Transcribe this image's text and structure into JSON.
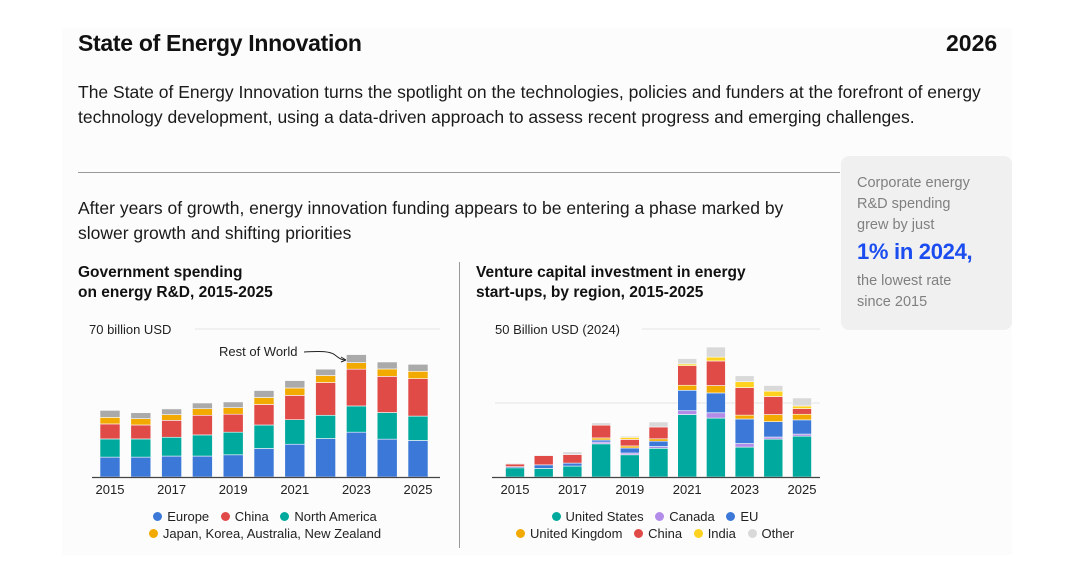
{
  "header": {
    "title": "State of Energy Innovation",
    "year": "2026"
  },
  "intro": "The State of Energy Innovation turns the spotlight on the technologies, policies and funders at the forefront of energy technology development,  using a data-driven approach to assess recent progress and emerging challenges.",
  "subheading": "After years of growth, energy innovation funding appears to be entering a phase marked by slower growth and shifting priorities",
  "callout": {
    "line1": "Corporate energy",
    "line2": "R&D spending",
    "line3": "grew by just",
    "highlight": "1% in 2024,",
    "line4": "the lowest rate",
    "line5": "since 2015",
    "highlight_color": "#1a4cf0"
  },
  "chart_data": [
    {
      "type": "bar",
      "stacked": true,
      "title": "Government spending on energy R&D, 2015-2025",
      "title_lines": [
        "Government spending",
        "on energy R&D, 2015-2025"
      ],
      "ylabel": "70 billion USD",
      "ylim": [
        0,
        70
      ],
      "annotation": "Rest of World",
      "categories": [
        "2015",
        "2016",
        "2017",
        "2018",
        "2019",
        "2020",
        "2021",
        "2022",
        "2023",
        "2024",
        "2025"
      ],
      "tick_labels": [
        "2015",
        "2017",
        "2019",
        "2021",
        "2023",
        "2025"
      ],
      "series": [
        {
          "name": "Europe",
          "color": "#3b78d8",
          "values": [
            9.4,
            9.4,
            9.9,
            9.9,
            10.5,
            13.5,
            15.5,
            18.2,
            21.2,
            17.9,
            17.3
          ]
        },
        {
          "name": "North America",
          "color": "#00a99d",
          "values": [
            8.6,
            8.6,
            8.9,
            10.0,
            10.7,
            11.1,
            11.6,
            11.0,
            12.4,
            12.6,
            11.5
          ]
        },
        {
          "name": "China",
          "color": "#e04a47",
          "values": [
            7.1,
            6.6,
            8.0,
            9.3,
            8.5,
            9.7,
            11.5,
            15.5,
            17.4,
            17.1,
            17.7
          ]
        },
        {
          "name": "Japan, Korea, Australia, New Zealand",
          "color": "#f2a900",
          "values": [
            3.1,
            3.0,
            2.7,
            3.1,
            3.1,
            3.3,
            3.5,
            3.3,
            3.1,
            3.5,
            3.5
          ]
        },
        {
          "name": "Rest of World",
          "color": "#aaaaaa",
          "values": [
            3.3,
            2.8,
            2.7,
            2.7,
            2.7,
            3.3,
            3.5,
            3.0,
            3.8,
            3.3,
            3.3
          ]
        }
      ],
      "legend": [
        "Europe",
        "China",
        "North America",
        "Japan, Korea, Australia, New Zealand"
      ]
    },
    {
      "type": "bar",
      "stacked": true,
      "title": "Venture capital investment in energy start-ups, by region, 2015-2025",
      "title_lines": [
        "Venture capital investment in energy",
        "start-ups, by region, 2015-2025"
      ],
      "ylabel": "50 Billion USD (2024)",
      "ylim": [
        0,
        50
      ],
      "gridlines": [
        25,
        50
      ],
      "categories": [
        "2015",
        "2016",
        "2017",
        "2018",
        "2019",
        "2020",
        "2021",
        "2022",
        "2023",
        "2024",
        "2025"
      ],
      "tick_labels": [
        "2015",
        "2017",
        "2019",
        "2021",
        "2023",
        "2025"
      ],
      "series": [
        {
          "name": "United States",
          "color": "#00a99d",
          "values": [
            3.1,
            2.9,
            3.7,
            11.2,
            7.5,
            9.7,
            21.1,
            19.9,
            10.1,
            12.8,
            13.8
          ]
        },
        {
          "name": "Canada",
          "color": "#b28ce8",
          "values": [
            0,
            0,
            0,
            0.6,
            0.6,
            0.6,
            1.3,
            1.8,
            1.2,
            0.7,
            0.7
          ]
        },
        {
          "name": "EU",
          "color": "#3b78d8",
          "values": [
            0.4,
            1.2,
            1.0,
            0.7,
            1.7,
            1.8,
            6.9,
            6.7,
            8.3,
            5.2,
            4.8
          ]
        },
        {
          "name": "United Kingdom",
          "color": "#f2a900",
          "values": [
            0,
            0,
            0,
            0.7,
            0.7,
            0.8,
            1.7,
            2.5,
            1.3,
            2.4,
            1.9
          ]
        },
        {
          "name": "China",
          "color": "#e04a47",
          "values": [
            0.9,
            3.1,
            2.9,
            4.3,
            2.2,
            4.0,
            6.6,
            8.3,
            9.3,
            6.1,
            1.9
          ]
        },
        {
          "name": "India",
          "color": "#ffd21f",
          "values": [
            0,
            0,
            0,
            0,
            0.7,
            0,
            0.6,
            1.3,
            2.0,
            1.8,
            0.9
          ]
        },
        {
          "name": "Other",
          "color": "#d9d9d9",
          "values": [
            0.3,
            0.3,
            0.9,
            0.8,
            0.4,
            1.7,
            1.8,
            3.4,
            2.0,
            1.9,
            2.7
          ]
        }
      ],
      "legend": [
        "United States",
        "Canada",
        "EU",
        "United Kingdom",
        "China",
        "India",
        "Other"
      ]
    }
  ]
}
